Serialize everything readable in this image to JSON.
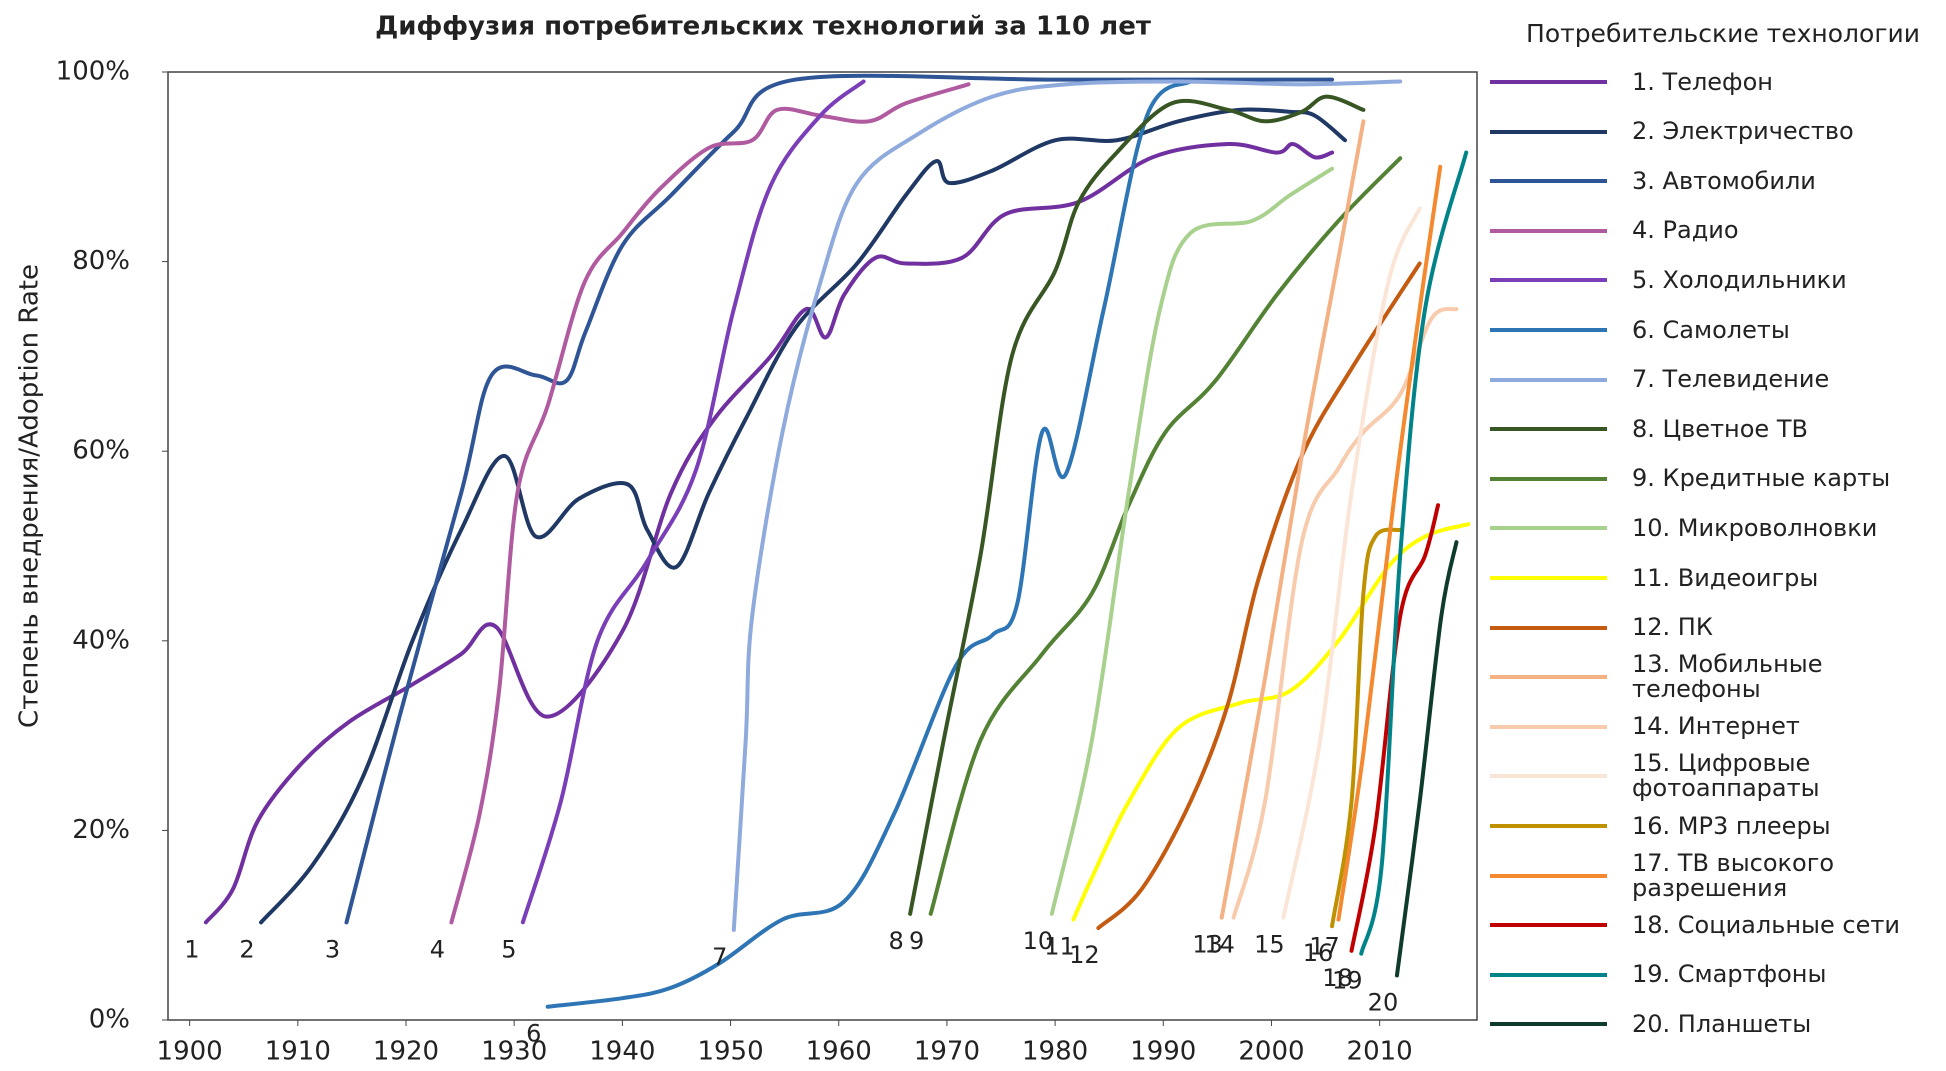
{
  "chart_data": {
    "type": "line",
    "title": "Диффузия потребительских технологий за 110 лет",
    "y_label": "Степень внедрения/Adoption Rate",
    "legend_title": "Потребительские технологии",
    "legend": "right",
    "xlim": [
      1898,
      2019
    ],
    "ylim": [
      0,
      100
    ],
    "xticks": [
      1900,
      1910,
      1920,
      1930,
      1940,
      1950,
      1960,
      1970,
      1980,
      1990,
      2000,
      2010
    ],
    "yticks": [
      {
        "value": 0,
        "label": "0%"
      },
      {
        "value": 20,
        "label": "20%"
      },
      {
        "value": 40,
        "label": "40%"
      },
      {
        "value": 60,
        "label": "60%"
      },
      {
        "value": 80,
        "label": "80%"
      },
      {
        "value": 100,
        "label": "100%"
      }
    ],
    "series": [
      {
        "name": "1. Телефон",
        "label": "1",
        "color": "#7030a0",
        "x": [
          1901.5,
          1904,
          1906.3,
          1910.3,
          1914.8,
          1920.6,
          1925.1,
          1928.3,
          1933,
          1940,
          1944.5,
          1948.5,
          1953.7,
          1957,
          1958.8,
          1960.5,
          1963.4,
          1966.2,
          1971.4,
          1975.4,
          1982.2,
          1989,
          1996,
          2000.5,
          2002,
          2004,
          2005.6
        ],
        "values": [
          10.3,
          13.8,
          21,
          27,
          31.5,
          35.4,
          38.6,
          41.5,
          32,
          41,
          55.6,
          63.4,
          70,
          75,
          72,
          76.5,
          80.4,
          79.8,
          80.4,
          85,
          86.3,
          91,
          92.4,
          91.5,
          92.4,
          91,
          91.5
        ]
      },
      {
        "name": "2. Электричество",
        "label": "2",
        "color": "#1f3864",
        "x": [
          1906.6,
          1911.4,
          1916,
          1920.6,
          1925.1,
          1929.1,
          1932,
          1936,
          1940.5,
          1942.3,
          1945,
          1948,
          1951.4,
          1956,
          1961.7,
          1966.2,
          1969,
          1970.2,
          1974.2,
          1980,
          1985.7,
          1991.4,
          1997,
          2001.7,
          2004,
          2006.8
        ],
        "values": [
          10.3,
          16.4,
          25.6,
          40,
          51.7,
          59.5,
          51,
          55,
          56.5,
          51.7,
          47.8,
          55.6,
          63.4,
          73,
          79.8,
          87,
          90.6,
          88.3,
          89.6,
          92.8,
          92.8,
          94.8,
          96,
          95.8,
          95.4,
          92.8
        ]
      },
      {
        "name": "3. Автомобили",
        "label": "3",
        "color": "#2f5597",
        "x": [
          1914.5,
          1919.4,
          1925.1,
          1927.9,
          1932,
          1934.8,
          1936.6,
          1940,
          1944.5,
          1950.3,
          1956,
          1980,
          2005.6
        ],
        "values": [
          10.3,
          32,
          55.6,
          68,
          68,
          67.4,
          72.6,
          81.7,
          87,
          93.7,
          99.2,
          99.2,
          99.2
        ]
      },
      {
        "name": "4. Радио",
        "label": "4",
        "color": "#b05aa0",
        "x": [
          1924.2,
          1926.8,
          1928.6,
          1930.3,
          1933.1,
          1936.5,
          1940,
          1943.4,
          1948,
          1952,
          1954.3,
          1958.3,
          1962.8,
          1966.2,
          1972
        ],
        "values": [
          10.3,
          21.7,
          34.7,
          55.6,
          64.8,
          77.8,
          83,
          87.6,
          92,
          92.8,
          96,
          95.4,
          94.8,
          96.7,
          98.7
        ]
      },
      {
        "name": "5. Холодильники",
        "label": "5",
        "color": "#7a3fb8",
        "x": [
          1930.8,
          1934.3,
          1937.7,
          1942.3,
          1946.8,
          1950.3,
          1953.7,
          1958.3,
          1962.3
        ],
        "values": [
          10.3,
          23,
          40,
          48.4,
          58,
          75,
          88,
          95.4,
          99
        ]
      },
      {
        "name": "6. Самолеты",
        "label": "6",
        "color": "#2e75b6",
        "x": [
          1933.1,
          1940,
          1944.5,
          1949,
          1954.8,
          1960.5,
          1965.1,
          1970.8,
          1974.2,
          1976.5,
          1978.8,
          1981,
          1984.5,
          1988.5,
          1992.5
        ],
        "values": [
          1.4,
          2.3,
          3.4,
          6,
          10.6,
          12.5,
          21.7,
          37.3,
          40.6,
          43.9,
          62,
          57.6,
          75,
          95.4,
          99
        ]
      },
      {
        "name": "7. Телевидение",
        "label": "7",
        "color": "#8faadc",
        "x": [
          1950.3,
          1951.4,
          1952,
          1954.8,
          1958.3,
          1961.7,
          1967.4,
          1974.2,
          1981,
          1991.4,
          2002.8,
          2011.9
        ],
        "values": [
          9.5,
          29.5,
          42.6,
          62,
          77.8,
          88.3,
          93.5,
          97.4,
          98.7,
          99,
          98.7,
          99
        ]
      },
      {
        "name": "8. Цветное ТВ",
        "label": "8",
        "color": "#375623",
        "x": [
          1966.6,
          1969.7,
          1973.1,
          1976,
          1980,
          1982.2,
          1985.7,
          1990.8,
          1996,
          1999.4,
          2002.8,
          2005.1,
          2008.5
        ],
        "values": [
          11.2,
          29.5,
          49,
          70,
          79,
          86.3,
          91.5,
          96.7,
          96,
          94.8,
          95.8,
          97.4,
          96
        ]
      },
      {
        "name": "9. Кредитные карты",
        "label": "9",
        "color": "#548235",
        "x": [
          1968.5,
          1973.1,
          1978.8,
          1983.4,
          1986.8,
          1990.2,
          1994.8,
          2000.5,
          2006.2,
          2011.9
        ],
        "values": [
          11.2,
          29.5,
          38.6,
          45,
          54.3,
          62,
          67.4,
          76.5,
          84.3,
          90.9
        ]
      },
      {
        "name": "10. Микроволновки",
        "label": "10",
        "color": "#a9d18e",
        "x": [
          1979.7,
          1983.4,
          1986.8,
          1989.7,
          1992.5,
          1998.2,
          2001.7,
          2005.6
        ],
        "values": [
          11.2,
          29.5,
          55.6,
          75,
          83,
          84.3,
          87,
          89.8
        ]
      },
      {
        "name": "11. Видеоигры",
        "label": "11",
        "color": "#ffff00",
        "x": [
          1981.7,
          1983.4,
          1986.8,
          1991.4,
          1997,
          2001.7,
          2006.2,
          2010.8,
          2014.2,
          2018.2
        ],
        "values": [
          10.6,
          15,
          23,
          30.8,
          33.4,
          34.7,
          40,
          47.8,
          51,
          52.3
        ]
      },
      {
        "name": "12. ПК",
        "label": "12",
        "color": "#c55a11",
        "x": [
          1984,
          1988,
          1992.5,
          1996,
          1998.8,
          2002.8,
          2007.4,
          2013.7
        ],
        "values": [
          9.7,
          13.8,
          23,
          33.4,
          46.5,
          59.5,
          68.7,
          79.8
        ]
      },
      {
        "name": "13. Мобильные телефоны",
        "label": "13",
        "color": "#f4b183",
        "x": [
          1995.4,
          1999.4,
          2002.8,
          2006.2,
          2008.5
        ],
        "values": [
          10.8,
          36,
          59.5,
          80.4,
          94.8
        ]
      },
      {
        "name": "14. Интернет",
        "label": "14",
        "color": "#f8cbad",
        "x": [
          1996.5,
          1999.4,
          2002.8,
          2006.2,
          2008.5,
          2011.9,
          2014.8,
          2017.1
        ],
        "values": [
          10.8,
          23,
          50.4,
          58.2,
          62,
          66,
          74,
          75
        ]
      },
      {
        "name": "15. Цифровые фотоаппараты",
        "label": "15",
        "color": "#fbe5d6",
        "x": [
          2001.1,
          2004.5,
          2007.4,
          2010.8,
          2013.7
        ],
        "values": [
          10.8,
          29.5,
          55.6,
          77.8,
          85.6
        ]
      },
      {
        "name": "16. MP3 плееры",
        "label": "16",
        "color": "#bf9000",
        "x": [
          2005.6,
          2007.4,
          2008.5,
          2009.6,
          2011.9
        ],
        "values": [
          9.9,
          23,
          45,
          51,
          51.7
        ]
      },
      {
        "name": "17. ТВ высокого разрешения",
        "label": "17",
        "color": "#f4892f",
        "x": [
          2006.2,
          2008.5,
          2011.4,
          2013.7,
          2015.6
        ],
        "values": [
          10.6,
          28.2,
          55.6,
          75,
          90
        ]
      },
      {
        "name": "18. Социальные сети",
        "label": "18",
        "color": "#c00000",
        "x": [
          2007.4,
          2009.6,
          2011.9,
          2014.2,
          2015.4
        ],
        "values": [
          7.3,
          20.4,
          42.6,
          49,
          54.3
        ]
      },
      {
        "name": "19. Смартфоны",
        "label": "19",
        "color": "#00848a",
        "x": [
          2008.3,
          2010.2,
          2011.9,
          2014.2,
          2018
        ],
        "values": [
          7,
          16.4,
          49,
          75,
          91.5
        ]
      },
      {
        "name": "20. Планшеты",
        "label": "20",
        "color": "#0e3b2c",
        "x": [
          2011.6,
          2013.7,
          2015.7,
          2017.1
        ],
        "values": [
          4.7,
          23,
          42.6,
          50.4
        ]
      }
    ]
  }
}
